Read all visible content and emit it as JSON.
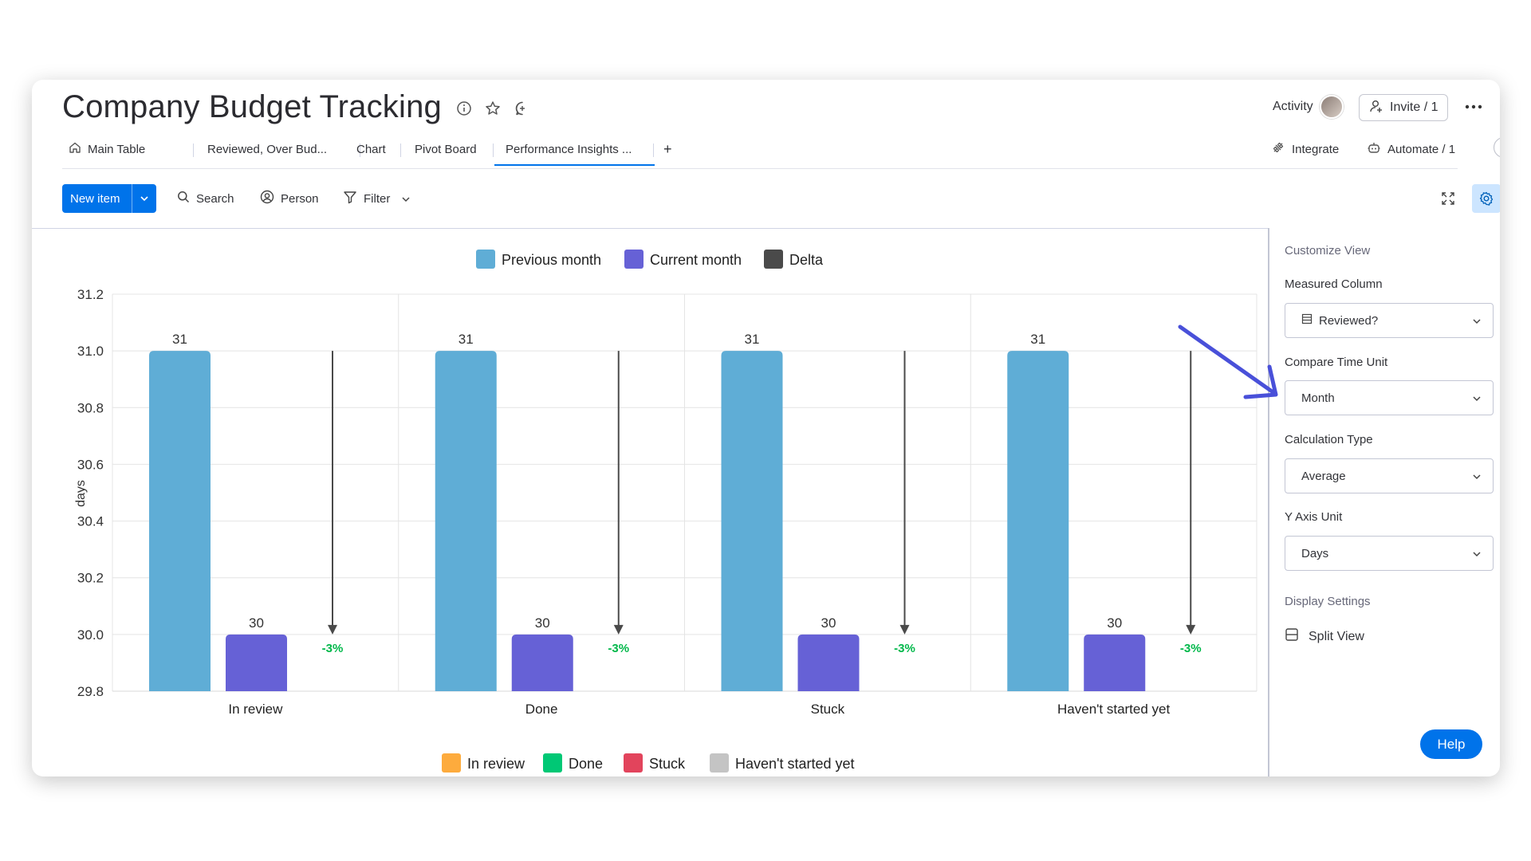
{
  "header": {
    "title": "Company Budget Tracking",
    "activity_label": "Activity",
    "invite_label": "Invite / 1",
    "integrate_label": "Integrate",
    "automate_label": "Automate / 1"
  },
  "tabs": [
    {
      "label": "Main Table",
      "icon": "home-icon"
    },
    {
      "label": "Reviewed, Over Bud..."
    },
    {
      "label": "Chart"
    },
    {
      "label": "Pivot Board"
    },
    {
      "label": "Performance Insights ...",
      "active": true
    },
    {
      "label": "+"
    }
  ],
  "toolbar": {
    "new_item_label": "New item",
    "search_label": "Search",
    "person_label": "Person",
    "filter_label": "Filter"
  },
  "colors": {
    "accent": "#0073ea",
    "previous_month": "#5fadd6",
    "current_month": "#6661d6",
    "delta": "#4a4a4a",
    "negative_delta": "#00b84a",
    "arrow_annotation": "#4950d9",
    "in_review": "#fdab3d",
    "done": "#00c875",
    "stuck": "#e2445c",
    "havent_started": "#c4c4c4"
  },
  "chart_data": {
    "type": "bar",
    "categories": [
      "In review",
      "Done",
      "Stuck",
      "Haven't started yet"
    ],
    "series": [
      {
        "name": "Previous month",
        "values": [
          31,
          31,
          31,
          31
        ]
      },
      {
        "name": "Current month",
        "values": [
          30,
          30,
          30,
          30
        ]
      }
    ],
    "delta": {
      "name": "Delta",
      "labels": [
        "-3%",
        "-3%",
        "-3%",
        "-3%"
      ]
    },
    "ylabel": "days",
    "xlabel": "",
    "ylim": [
      29.8,
      31.2
    ],
    "yticks": [
      "31.2",
      "31.0",
      "30.8",
      "30.6",
      "30.4",
      "30.2",
      "30.0",
      "29.8"
    ],
    "grid": true,
    "legend_position": "top",
    "legend": [
      "Previous month",
      "Current month",
      "Delta"
    ],
    "category_legend": [
      "In review",
      "Done",
      "Stuck",
      "Haven't started yet"
    ]
  },
  "sidebar": {
    "customize_heading": "Customize View",
    "measured_column_label": "Measured Column",
    "measured_column_value": "Reviewed?",
    "compare_time_unit_label": "Compare Time Unit",
    "compare_time_unit_value": "Month",
    "calculation_type_label": "Calculation Type",
    "calculation_type_value": "Average",
    "y_axis_unit_label": "Y Axis Unit",
    "y_axis_unit_value": "Days",
    "display_settings_heading": "Display Settings",
    "split_view_label": "Split View",
    "help_label": "Help"
  }
}
